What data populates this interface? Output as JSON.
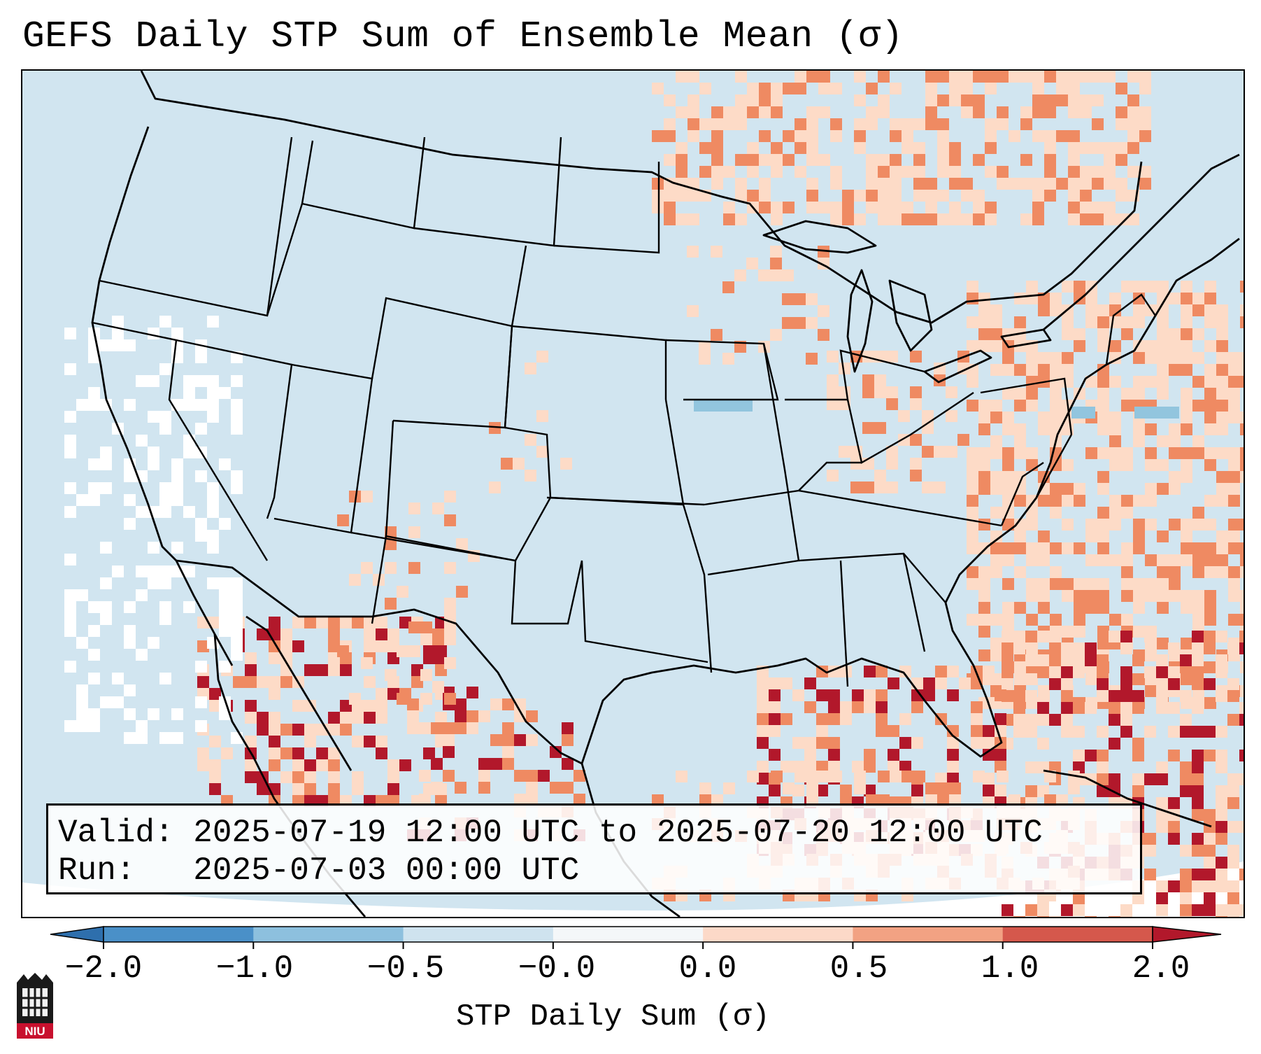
{
  "title": "GEFS Daily STP Sum of Ensemble Mean (σ)",
  "info": {
    "valid_label": "Valid:",
    "valid_value": "2025-07-19 12:00 UTC to 2025-07-20 12:00 UTC",
    "run_label": "Run:",
    "run_value": "2025-07-03 00:00 UTC"
  },
  "colorbar": {
    "label": "STP Daily Sum (σ)",
    "ticks": [
      "−2.0",
      "−1.0",
      "−0.5",
      "−0.0",
      "0.0",
      "0.5",
      "1.0",
      "2.0"
    ],
    "bin_colors": [
      "#4a90c8",
      "#8dc0de",
      "#cfe3ef",
      "#f4f7f9",
      "#fcd9c8",
      "#f2a283",
      "#d5584c"
    ],
    "under_color": "#2e6fad",
    "over_color": "#b2182b",
    "extend": "both"
  },
  "legend_colors": {
    "ocean_background": "#d1e5f0",
    "land_background": "#d1e5f0",
    "missing": "#ffffff",
    "strong_positive": "#b2182b",
    "positive": "#ef8a62",
    "weak_positive": "#fddbc7",
    "weak_negative": "#92c5de"
  },
  "map": {
    "projection": "conic",
    "borders": [
      "coastlines",
      "countries",
      "states"
    ]
  },
  "logo": {
    "text": "NIU"
  }
}
